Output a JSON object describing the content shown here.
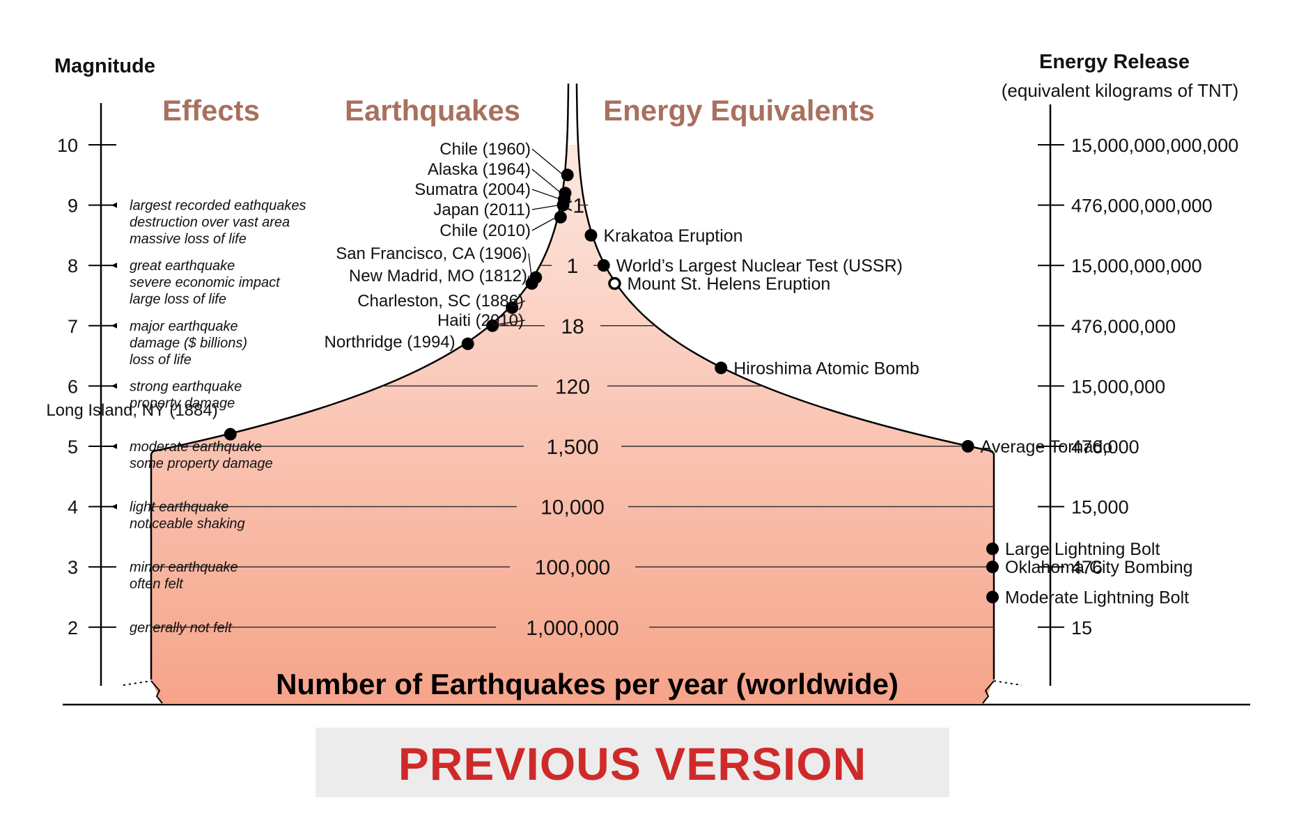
{
  "header": {
    "magnitude": "Magnitude",
    "energy_title": "Energy Release",
    "energy_subtitle": "(equivalent kilograms of TNT)"
  },
  "columns": {
    "effects": "Effects",
    "earthquakes": "Earthquakes",
    "energy_equivalents": "Energy Equivalents"
  },
  "magnitudes": [
    {
      "value": "10",
      "energy": "15,000,000,000,000",
      "effects": []
    },
    {
      "value": "9",
      "energy": "476,000,000,000",
      "effects": [
        "largest recorded eathquakes",
        "destruction over vast area",
        "massive loss of life"
      ]
    },
    {
      "value": "8",
      "energy": "15,000,000,000",
      "effects": [
        "great earthquake",
        "severe economic impact",
        "large loss of life"
      ]
    },
    {
      "value": "7",
      "energy": "476,000,000",
      "effects": [
        "major earthquake",
        "damage ($ billions)",
        "loss of life"
      ]
    },
    {
      "value": "6",
      "energy": "15,000,000",
      "effects": [
        "strong earthquake",
        "property damage"
      ]
    },
    {
      "value": "5",
      "energy": "476,000",
      "effects": [
        "moderate earthquake",
        "some property damage"
      ]
    },
    {
      "value": "4",
      "energy": "15,000",
      "effects": [
        "light earthquake",
        "noticeable shaking"
      ]
    },
    {
      "value": "3",
      "energy": "476",
      "effects": [
        "minor earthquake",
        "often felt"
      ]
    },
    {
      "value": "2",
      "energy": "15",
      "effects": [
        "generally not felt"
      ]
    }
  ],
  "earthquakes": [
    {
      "label": "Chile (1960)",
      "magnitude": 9.5
    },
    {
      "label": "Alaska (1964)",
      "magnitude": 9.2
    },
    {
      "label": "Sumatra (2004)",
      "magnitude": 9.1
    },
    {
      "label": "Japan (2011)",
      "magnitude": 9.0
    },
    {
      "label": "Chile (2010)",
      "magnitude": 8.8
    },
    {
      "label": "San Francisco, CA (1906)",
      "magnitude": 7.8
    },
    {
      "label": "New Madrid, MO (1812)",
      "magnitude": 7.7
    },
    {
      "label": "Charleston, SC (1886)",
      "magnitude": 7.3
    },
    {
      "label": "Haiti (2010)",
      "magnitude": 7.0
    },
    {
      "label": "Northridge (1994)",
      "magnitude": 6.7
    },
    {
      "label": "Long Island, NY (1884)",
      "magnitude": 5.2
    }
  ],
  "energy_equivalents": [
    {
      "label": "Krakatoa Eruption",
      "magnitude": 8.5,
      "hollow": false
    },
    {
      "label": "World’s Largest Nuclear Test (USSR)",
      "magnitude": 8.0,
      "hollow": false
    },
    {
      "label": "Mount St. Helens Eruption",
      "magnitude": 7.7,
      "hollow": true
    },
    {
      "label": "Hiroshima Atomic Bomb",
      "magnitude": 6.3,
      "hollow": false
    },
    {
      "label": "Average Tornado",
      "magnitude": 5.0,
      "hollow": false
    },
    {
      "label": "Large Lightning Bolt",
      "magnitude": 3.3,
      "hollow": false
    },
    {
      "label": "Oklahoma City Bombing",
      "magnitude": 3.0,
      "hollow": false
    },
    {
      "label": "Moderate Lightning Bolt",
      "magnitude": 2.5,
      "hollow": false
    }
  ],
  "counts_per_year": [
    {
      "label": "<1",
      "magnitude": 9
    },
    {
      "label": "1",
      "magnitude": 8
    },
    {
      "label": "18",
      "magnitude": 7
    },
    {
      "label": "120",
      "magnitude": 6
    },
    {
      "label": "1,500",
      "magnitude": 5
    },
    {
      "label": "10,000",
      "magnitude": 4
    },
    {
      "label": "100,000",
      "magnitude": 3
    },
    {
      "label": "1,000,000",
      "magnitude": 2
    }
  ],
  "bottom_label": "Number of Earthquakes per year (worldwide)",
  "banner": "PREVIOUS VERSION",
  "colors": {
    "category": "#a8705e",
    "fill_light": "#fde7df",
    "fill_dark": "#f6a48a",
    "banner_bg": "#ececec",
    "banner_text": "#cf2a2a"
  }
}
